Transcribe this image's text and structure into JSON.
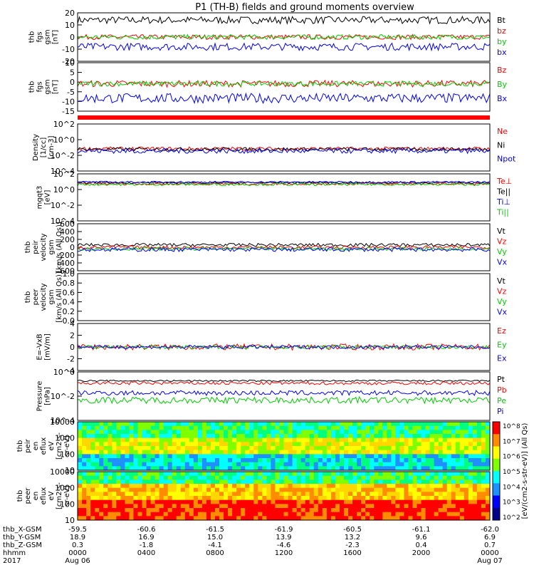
{
  "title": "P1 (TH-B) fields and ground moments overview",
  "colors": {
    "black": "#000000",
    "red": "#ff0000",
    "green": "#00cc00",
    "blue": "#0000ff"
  },
  "chart_data": [
    {
      "type": "line",
      "ylabel": [
        "thb",
        "fgs",
        "gsm",
        "[nT]"
      ],
      "ylim": [
        -20,
        20
      ],
      "yticks": [
        "20",
        "10",
        "0",
        "-10",
        "-20"
      ],
      "series": [
        {
          "name": "Bt",
          "color": "black"
        },
        {
          "name": "bz",
          "color": "red"
        },
        {
          "name": "by",
          "color": "green"
        },
        {
          "name": "bx",
          "color": "blue"
        }
      ]
    },
    {
      "type": "line",
      "ylabel": [
        "thb",
        "fgs",
        "gsm",
        "[nT]"
      ],
      "ylim": [
        -17,
        13
      ],
      "yticks": [
        "10",
        "5",
        "0",
        "-5",
        "-10",
        "-15"
      ],
      "series": [
        {
          "name": "Bz",
          "color": "red"
        },
        {
          "name": "By",
          "color": "green"
        },
        {
          "name": "Bx",
          "color": "blue"
        }
      ]
    },
    {
      "type": "line",
      "ylabel": [
        "Density",
        "[1/cc]",
        "[cm-3]"
      ],
      "log": true,
      "ylim": [
        -5,
        3
      ],
      "yticks": [
        "10^2",
        "10^0",
        "10^-2",
        "10^-4"
      ],
      "series": [
        {
          "name": "Ne",
          "color": "red"
        },
        {
          "name": "Ni",
          "color": "black"
        },
        {
          "name": "Npot",
          "color": "blue"
        }
      ]
    },
    {
      "type": "line",
      "ylabel": [
        "mgqt3",
        "[eV]"
      ],
      "log": true,
      "ylim": [
        -5,
        3
      ],
      "yticks": [
        "10^2",
        "10^0",
        "10^-2",
        "10^-4"
      ],
      "series": [
        {
          "name": "Te⊥",
          "color": "red"
        },
        {
          "name": "Te||",
          "color": "black"
        },
        {
          "name": "Ti⊥",
          "color": "blue"
        },
        {
          "name": "Ti||",
          "color": "green"
        }
      ]
    },
    {
      "type": "line",
      "ylabel": [
        "thb",
        "peir",
        "velocity",
        "gsm",
        "[km/s (All Qs)]"
      ],
      "ylim": [
        -600,
        600
      ],
      "yticks": [
        "600",
        "400",
        "200",
        "0",
        "-200",
        "-400",
        "-600"
      ],
      "series": [
        {
          "name": "Vt",
          "color": "black"
        },
        {
          "name": "Vz",
          "color": "red"
        },
        {
          "name": "Vy",
          "color": "green"
        },
        {
          "name": "Vx",
          "color": "blue"
        }
      ]
    },
    {
      "type": "line",
      "ylabel": [
        "thb",
        "peer",
        "velocity",
        "gsm",
        "[km/s (All Qs)]"
      ],
      "ylim": [
        0,
        1
      ],
      "yticks": [
        "1.0",
        "0.8",
        "0.6",
        "0.4",
        "0.2",
        "0.0"
      ],
      "series": [
        {
          "name": "Vt",
          "color": "black"
        },
        {
          "name": "Vz",
          "color": "red"
        },
        {
          "name": "Vy",
          "color": "green"
        },
        {
          "name": "Vx",
          "color": "blue"
        }
      ]
    },
    {
      "type": "line",
      "ylabel": [
        "E=-VxB",
        "[mV/m]"
      ],
      "ylim": [
        -4,
        4
      ],
      "yticks": [
        "4",
        "2",
        "0",
        "-2",
        "-4"
      ],
      "series": [
        {
          "name": "Ez",
          "color": "red"
        },
        {
          "name": "Ey",
          "color": "green"
        },
        {
          "name": "Ex",
          "color": "blue"
        }
      ]
    },
    {
      "type": "line",
      "ylabel": [
        "Pressure",
        "[nPa]"
      ],
      "log": true,
      "ylim": [
        -6,
        0
      ],
      "yticks": [
        "10^0",
        "10^-2",
        "10^-4"
      ],
      "series": [
        {
          "name": "Pt",
          "color": "black"
        },
        {
          "name": "Pb",
          "color": "red"
        },
        {
          "name": "Pe",
          "color": "green"
        },
        {
          "name": "Pi",
          "color": "blue"
        }
      ]
    },
    {
      "type": "heatmap",
      "ylabel": [
        "thb",
        "peir",
        "en",
        "eflux",
        "eV",
        "[cm2-s-",
        "sr-eV]"
      ],
      "log": true,
      "yticks": [
        "10000",
        "1000",
        "100",
        "10"
      ]
    },
    {
      "type": "heatmap",
      "ylabel": [
        "thb",
        "peer",
        "en",
        "eflux",
        "eV",
        "[cm2-s-",
        "sr-eV]"
      ],
      "log": true,
      "yticks": [
        "10000",
        "1000",
        "100",
        "10"
      ]
    }
  ],
  "colorbar": {
    "label": "[eV/(cm2-s-str-eV)] (All Qs)",
    "ticks": [
      "10^8",
      "10^7",
      "10^6",
      "10^5",
      "10^4",
      "10^3",
      "10^2"
    ]
  },
  "xaxis": {
    "rows": [
      {
        "label": "thb_X-GSM",
        "values": [
          "-59.5",
          "-60.6",
          "-61.5",
          "-61.9",
          "-60.5",
          "-61.1",
          "-62.0"
        ]
      },
      {
        "label": "thb_Y-GSM",
        "values": [
          "18.9",
          "16.9",
          "15.0",
          "13.9",
          "13.2",
          "9.6",
          "6.9"
        ]
      },
      {
        "label": "thb_Z-GSM",
        "values": [
          "0.3",
          "-1.8",
          "-4.1",
          "-4.6",
          "-2.3",
          "0.4",
          "0.7"
        ]
      },
      {
        "label": "hhmm",
        "values": [
          "0000",
          "0400",
          "0800",
          "1200",
          "1600",
          "2000",
          "0000"
        ]
      },
      {
        "label": "2017",
        "values": [
          "Aug 06",
          "",
          "",
          "",
          "",
          "",
          "Aug 07"
        ]
      }
    ]
  }
}
